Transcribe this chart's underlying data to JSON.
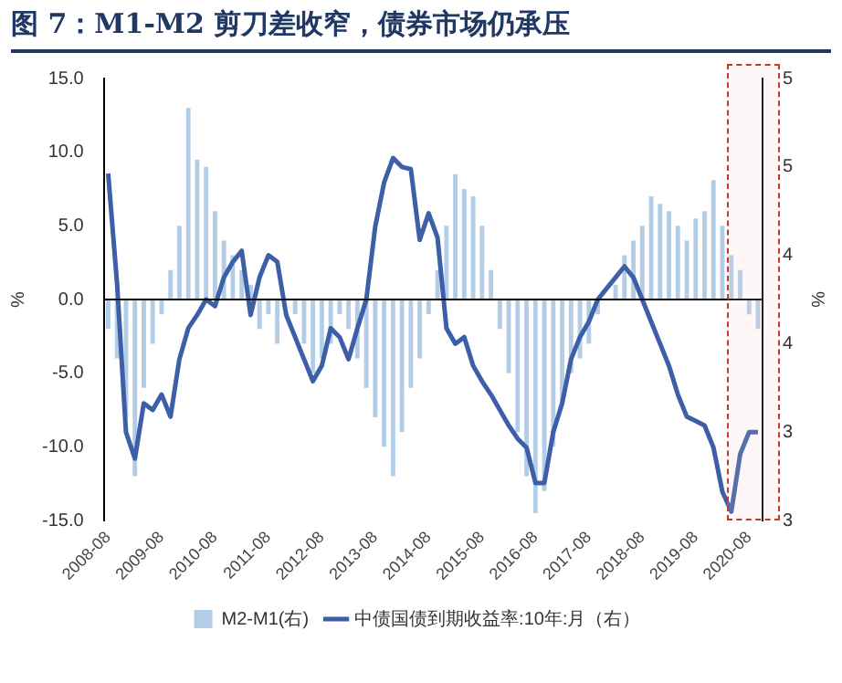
{
  "chart_data": {
    "type": "bar",
    "title": "图 7：M1-M2 剪刀差收窄，债券市场仍承压",
    "ylabel": "%",
    "y2label": "%",
    "categories": [
      "2008-08",
      null,
      null,
      null,
      null,
      null,
      "2009-08",
      null,
      null,
      null,
      null,
      null,
      "2010-08",
      null,
      null,
      null,
      null,
      null,
      "2011-08",
      null,
      null,
      null,
      null,
      null,
      "2012-08",
      null,
      null,
      null,
      null,
      null,
      "2013-08",
      null,
      null,
      null,
      null,
      null,
      "2014-08",
      null,
      null,
      null,
      null,
      null,
      "2015-08",
      null,
      null,
      null,
      null,
      null,
      "2016-08",
      null,
      null,
      null,
      null,
      null,
      "2017-08",
      null,
      null,
      null,
      null,
      null,
      "2018-08",
      null,
      null,
      null,
      null,
      null,
      "2019-08",
      null,
      null,
      null,
      null,
      null,
      "2020-08",
      null
    ],
    "series": [
      {
        "name": "M2-M1(右)",
        "color": "#b4cde6",
        "values": [
          -2,
          -4,
          -8,
          -12,
          -6,
          -3,
          -1,
          2,
          5,
          13,
          9.5,
          9,
          6,
          4,
          3,
          2,
          1,
          -2,
          -1,
          -3,
          null,
          -1,
          -3,
          -5,
          -4,
          -3,
          -1,
          -2,
          -4,
          -6,
          -8,
          -10,
          -12,
          -9,
          -6,
          -4,
          -1,
          2,
          5,
          8.5,
          7.5,
          7,
          5,
          2,
          -2,
          -5,
          -9,
          -12,
          -14.5,
          -13,
          -10,
          -7,
          -5,
          -4,
          -3,
          -1,
          0,
          1,
          3,
          4,
          5,
          7,
          6.5,
          6,
          5,
          4,
          5.5,
          6,
          8.1,
          5,
          3,
          2,
          -1,
          -2
        ]
      },
      {
        "name": "中债国债到期收益率:10年:月（右）",
        "type": "line",
        "axis": "y2",
        "color": "#3d5fa8",
        "values": [
          4.57,
          4.07,
          3.4,
          3.28,
          3.53,
          3.5,
          3.57,
          3.47,
          3.73,
          3.87,
          3.93,
          4.0,
          3.97,
          4.1,
          4.17,
          4.22,
          3.93,
          4.1,
          4.2,
          4.17,
          3.93,
          3.83,
          3.73,
          3.63,
          3.7,
          3.87,
          3.83,
          3.73,
          3.87,
          4.0,
          4.33,
          4.53,
          4.64,
          4.6,
          4.59,
          4.27,
          4.39,
          4.28,
          3.87,
          3.8,
          3.83,
          3.7,
          3.63,
          3.57,
          3.5,
          3.43,
          3.37,
          3.33,
          3.17,
          3.17,
          3.4,
          3.53,
          3.73,
          3.83,
          3.9,
          4.0,
          4.05,
          4.1,
          4.15,
          4.1,
          4.0,
          3.9,
          3.8,
          3.7,
          3.57,
          3.47,
          3.45,
          3.43,
          3.33,
          3.13,
          3.04,
          3.3,
          3.4,
          3.4
        ]
      }
    ],
    "ylim": [
      -15,
      15
    ],
    "yticks": [
      {
        "value": 15,
        "label": "15.0"
      },
      {
        "value": 10,
        "label": "10.0"
      },
      {
        "value": 5,
        "label": "5.0"
      },
      {
        "value": 0,
        "label": "0.0"
      },
      {
        "value": -5,
        "label": "-5.0"
      },
      {
        "value": -10,
        "label": "-10.0"
      },
      {
        "value": -15,
        "label": "-15.0"
      }
    ],
    "y2lim": [
      3,
      5
    ],
    "y2ticks": [
      {
        "value": 5,
        "label": "5"
      },
      {
        "value": 4.6,
        "label": "5"
      },
      {
        "value": 4.2,
        "label": "4"
      },
      {
        "value": 3.8,
        "label": "4"
      },
      {
        "value": 3.4,
        "label": "3"
      },
      {
        "value": 3,
        "label": "3"
      }
    ],
    "ref_lines": [
      {
        "axis": "y",
        "value": 0,
        "color": "#000000"
      }
    ],
    "grid": false,
    "legend": "bottom",
    "marker": "none",
    "line_style": "solid"
  }
}
